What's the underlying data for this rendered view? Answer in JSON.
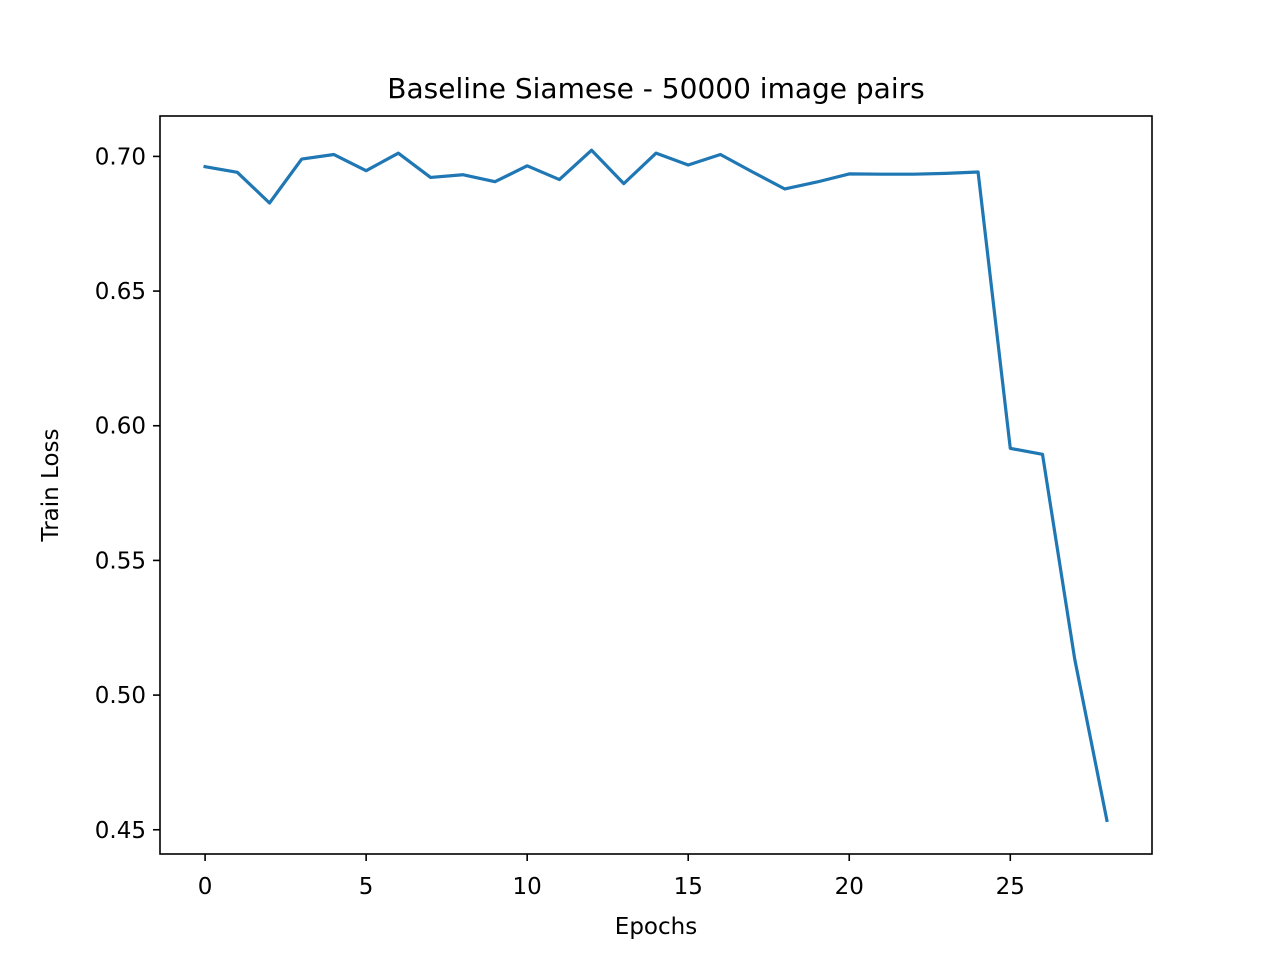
{
  "chart_data": {
    "type": "line",
    "title": "Baseline Siamese - 50000 image pairs",
    "xlabel": "Epochs",
    "ylabel": "Train Loss",
    "xlim": [
      -1.4,
      29.4
    ],
    "ylim": [
      0.441,
      0.715
    ],
    "xticks": [
      0,
      5,
      10,
      15,
      20,
      25
    ],
    "xtick_labels": [
      "0",
      "5",
      "10",
      "15",
      "20",
      "25"
    ],
    "yticks": [
      0.45,
      0.5,
      0.55,
      0.6,
      0.65,
      0.7
    ],
    "ytick_labels": [
      "0.45",
      "0.50",
      "0.55",
      "0.60",
      "0.65",
      "0.70"
    ],
    "grid": false,
    "legend": "none",
    "series": [
      {
        "color": "#1f77b4",
        "x": [
          0,
          1,
          2,
          3,
          4,
          5,
          6,
          7,
          8,
          9,
          10,
          11,
          12,
          13,
          14,
          15,
          16,
          17,
          18,
          19,
          20,
          21,
          22,
          23,
          24,
          25,
          26,
          27,
          28
        ],
        "y": [
          0.6962,
          0.6941,
          0.6827,
          0.699,
          0.7007,
          0.6947,
          0.7012,
          0.6922,
          0.6932,
          0.6906,
          0.6965,
          0.6914,
          0.7023,
          0.6899,
          0.7012,
          0.6968,
          0.7007,
          0.6942,
          0.6879,
          0.6905,
          0.6935,
          0.6934,
          0.6934,
          0.6937,
          0.6942,
          0.5916,
          0.5894,
          0.5134,
          0.4535
        ]
      }
    ]
  }
}
